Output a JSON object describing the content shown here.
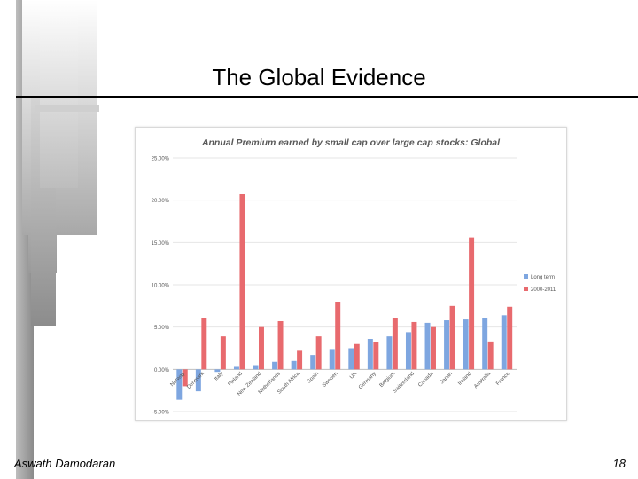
{
  "slide": {
    "title": "The Global Evidence",
    "author": "Aswath Damodaran",
    "page_number": "18"
  },
  "colors": {
    "long_term": "#7ea6e0",
    "recent": "#e86a6e",
    "grid": "#e6e6e6",
    "axis_text": "#555555"
  },
  "chart_data": {
    "type": "bar",
    "title": "Annual Premium earned by small cap over large cap stocks: Global",
    "xlabel": "",
    "ylabel": "",
    "ylim": [
      -5,
      25
    ],
    "ytick_values": [
      -5,
      0,
      5,
      10,
      15,
      20,
      25
    ],
    "ytick_labels": [
      "-5.00%",
      "0.00%",
      "5.00%",
      "10.00%",
      "15.00%",
      "20.00%",
      "25.00%"
    ],
    "grid": true,
    "legend_position": "right",
    "categories": [
      "Norway",
      "Denmark",
      "Italy",
      "Finland",
      "New Zealand",
      "Netherlands",
      "South Africa",
      "Spain",
      "Sweden",
      "UK",
      "Germany",
      "Belgium",
      "Switzerland",
      "Canada",
      "Japan",
      "Ireland",
      "Australia",
      "France"
    ],
    "series": [
      {
        "name": "Long term",
        "values": [
          -3.6,
          -2.6,
          -0.3,
          0.3,
          0.4,
          0.9,
          1.0,
          1.7,
          2.3,
          2.5,
          3.6,
          3.9,
          4.4,
          5.5,
          5.8,
          5.9,
          6.1,
          6.4
        ]
      },
      {
        "name": "2000-2011",
        "values": [
          -2.0,
          6.1,
          3.9,
          20.7,
          5.0,
          5.7,
          2.2,
          3.9,
          8.0,
          3.0,
          3.2,
          6.1,
          5.6,
          5.0,
          7.5,
          15.6,
          3.3,
          7.4
        ]
      }
    ]
  }
}
